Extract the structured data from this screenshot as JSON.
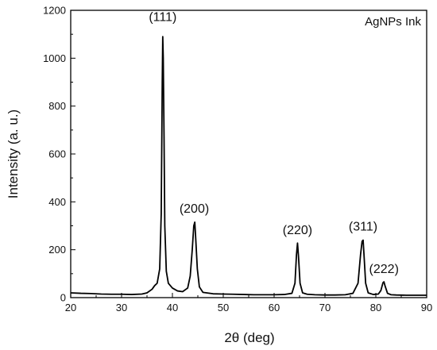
{
  "chart_data": {
    "type": "line",
    "xlabel": "2θ (deg)",
    "ylabel": "Intensity (a. u.)",
    "xlim": [
      20,
      90
    ],
    "ylim": [
      0,
      1200
    ],
    "x_ticks": [
      20,
      30,
      40,
      50,
      60,
      70,
      80,
      90
    ],
    "y_ticks": [
      0,
      200,
      400,
      600,
      800,
      1000,
      1200
    ],
    "grid": false,
    "legend_placement": "top-right",
    "series": [
      {
        "name": "AgNPs Ink",
        "color": "#000000",
        "x": [
          20,
          22,
          24,
          26,
          28,
          30,
          32,
          34,
          35,
          36,
          36.5,
          37,
          37.5,
          37.8,
          38.0,
          38.1,
          38.2,
          38.35,
          38.5,
          38.8,
          39.2,
          40,
          41,
          42,
          43,
          43.5,
          43.9,
          44.2,
          44.4,
          44.6,
          44.9,
          45.3,
          46,
          48,
          50,
          52,
          54,
          56,
          58,
          60,
          62,
          63.5,
          64.1,
          64.4,
          64.6,
          64.8,
          65.1,
          65.6,
          66.5,
          68,
          70,
          72,
          74,
          75.5,
          76.5,
          77.0,
          77.3,
          77.5,
          77.7,
          78.0,
          78.5,
          79.5,
          80.5,
          81.0,
          81.4,
          81.6,
          81.8,
          82.3,
          83,
          84,
          86,
          88,
          90
        ],
        "y": [
          20,
          18,
          17,
          15,
          14,
          14,
          13,
          15,
          20,
          35,
          50,
          60,
          120,
          350,
          900,
          1090,
          1000,
          680,
          300,
          110,
          60,
          40,
          28,
          25,
          40,
          90,
          200,
          300,
          315,
          240,
          120,
          45,
          22,
          16,
          15,
          14,
          13,
          12,
          12,
          12,
          13,
          18,
          60,
          180,
          228,
          170,
          60,
          20,
          14,
          12,
          11,
          11,
          12,
          18,
          60,
          180,
          235,
          240,
          170,
          60,
          20,
          13,
          15,
          30,
          62,
          66,
          50,
          18,
          12,
          11,
          10,
          10,
          10
        ]
      }
    ],
    "annotations": [
      {
        "text": "(111)",
        "x": 38.1,
        "y": 1155
      },
      {
        "text": "(200)",
        "x": 44.3,
        "y": 355
      },
      {
        "text": "(220)",
        "x": 64.6,
        "y": 265
      },
      {
        "text": "(311)",
        "x": 77.5,
        "y": 280
      },
      {
        "text": "(222)",
        "x": 81.6,
        "y": 103
      }
    ]
  }
}
